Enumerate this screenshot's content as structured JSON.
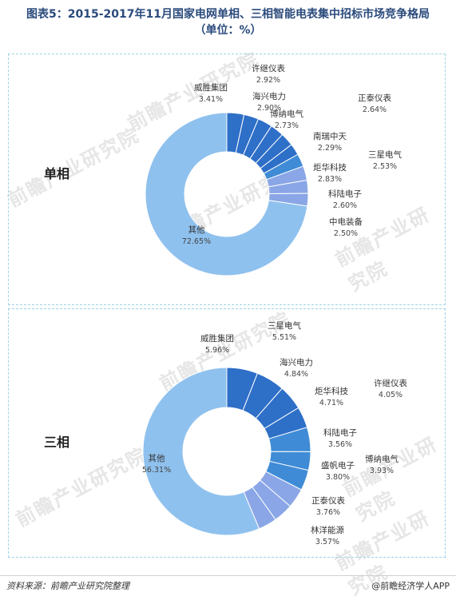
{
  "title_line1": "图表5：2015-2017年11月国家电网单相、三相智能电表集中招标市场竞争格局",
  "title_line2": "（单位：%）",
  "watermark": "前瞻产业研究院",
  "colors": {
    "dark_blue": "#2e6fc8",
    "mid_blue": "#3f8bd6",
    "light_blue": "#8fc1ee",
    "periwinkle": "#8aa6e6",
    "border": "#9ed3e3"
  },
  "chart_data": [
    {
      "type": "pie",
      "donut": true,
      "panel_label": "单相",
      "slices": [
        {
          "label": "威胜集团",
          "value": 3.41,
          "pct": "3.41%"
        },
        {
          "label": "许继仪表",
          "value": 2.92,
          "pct": "2.92%"
        },
        {
          "label": "海兴电力",
          "value": 2.9,
          "pct": "2.90%"
        },
        {
          "label": "博纳电气",
          "value": 2.73,
          "pct": "2.73%"
        },
        {
          "label": "正泰仪表",
          "value": 2.64,
          "pct": "2.64%"
        },
        {
          "label": "南瑞中天",
          "value": 2.29,
          "pct": "2.29%"
        },
        {
          "label": "三星电气",
          "value": 2.53,
          "pct": "2.53%"
        },
        {
          "label": "炬华科技",
          "value": 2.83,
          "pct": "2.83%"
        },
        {
          "label": "科陆电子",
          "value": 2.6,
          "pct": "2.60%"
        },
        {
          "label": "中电装备",
          "value": 2.5,
          "pct": "2.50%"
        },
        {
          "label": "其他",
          "value": 72.65,
          "pct": "72.65%"
        }
      ]
    },
    {
      "type": "pie",
      "donut": true,
      "panel_label": "三相",
      "slices": [
        {
          "label": "威胜集团",
          "value": 5.96,
          "pct": "5.96%"
        },
        {
          "label": "三星电气",
          "value": 5.51,
          "pct": "5.51%"
        },
        {
          "label": "海兴电力",
          "value": 4.84,
          "pct": "4.84%"
        },
        {
          "label": "许继仪表",
          "value": 4.05,
          "pct": "4.05%"
        },
        {
          "label": "炬华科技",
          "value": 4.71,
          "pct": "4.71%"
        },
        {
          "label": "科陆电子",
          "value": 3.56,
          "pct": "3.56%"
        },
        {
          "label": "博纳电气",
          "value": 3.93,
          "pct": "3.93%"
        },
        {
          "label": "盛帆电子",
          "value": 3.8,
          "pct": "3.80%"
        },
        {
          "label": "正泰仪表",
          "value": 3.76,
          "pct": "3.76%"
        },
        {
          "label": "林洋能源",
          "value": 3.57,
          "pct": "3.57%"
        },
        {
          "label": "其他",
          "value": 56.31,
          "pct": "56.31%"
        }
      ]
    }
  ],
  "footer": {
    "source": "资料来源：前瞻产业研究院整理",
    "brand": "@前瞻经济学人APP"
  }
}
